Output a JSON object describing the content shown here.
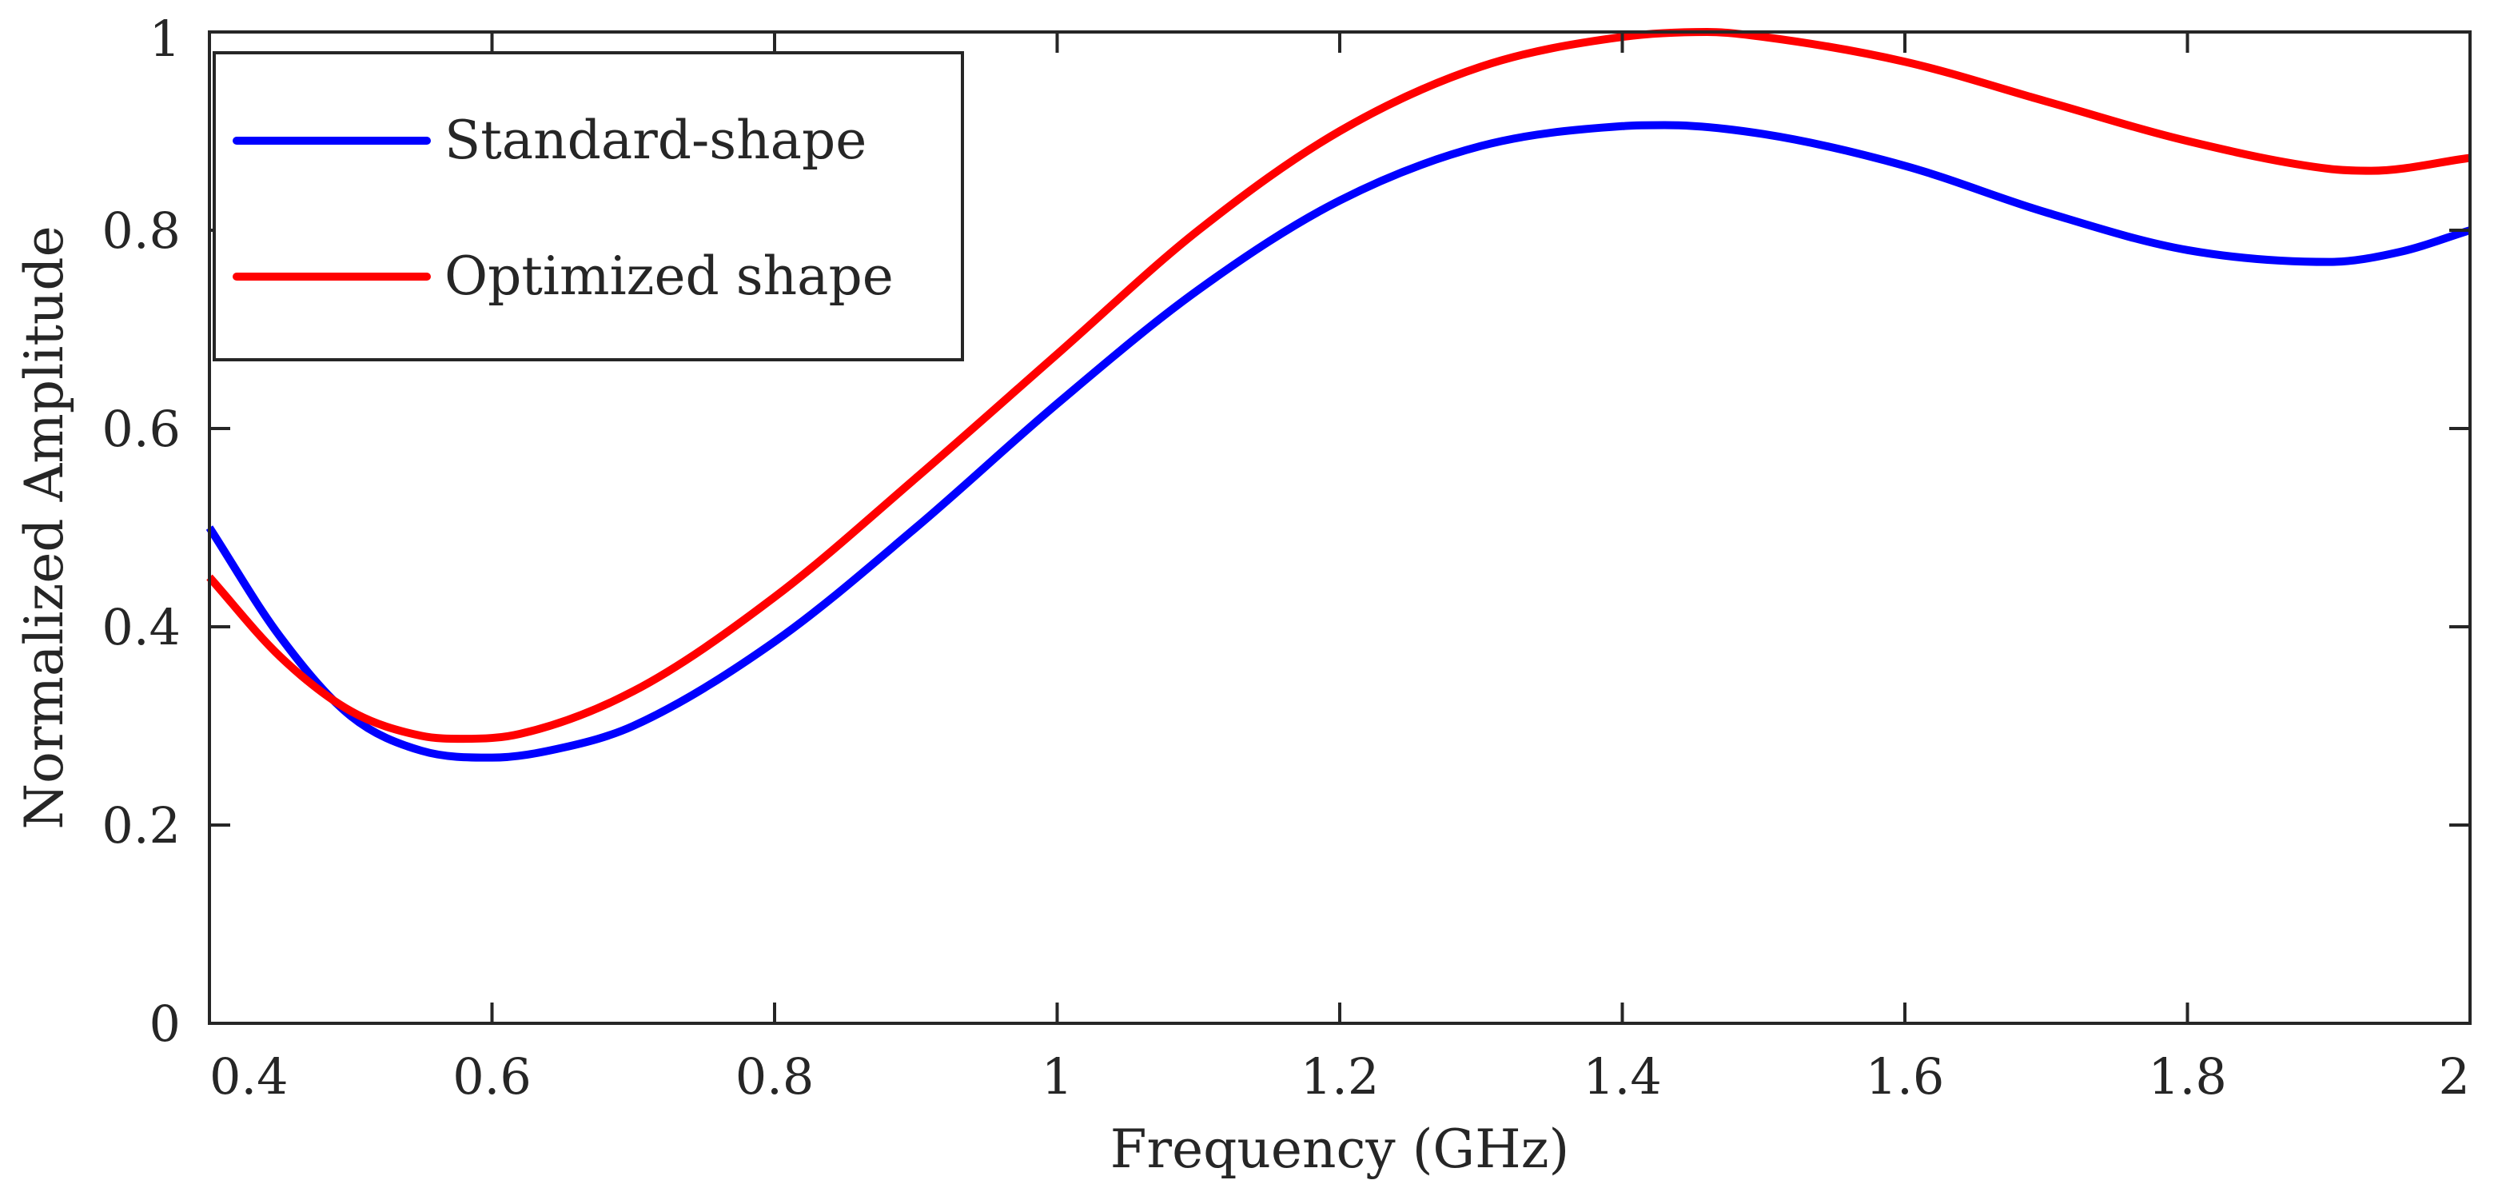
{
  "chart_data": {
    "type": "line",
    "title": "",
    "xlabel": "Frequency (GHz)",
    "ylabel": "Normalized Amplitude",
    "xlim": [
      0.4,
      2
    ],
    "ylim": [
      0,
      1
    ],
    "xticks": [
      0.4,
      0.6,
      0.8,
      1,
      1.2,
      1.4,
      1.6,
      1.8,
      2
    ],
    "xtick_labels": [
      "0.4",
      "0.6",
      "0.8",
      "1",
      "1.2",
      "1.4",
      "1.6",
      "1.8",
      "2"
    ],
    "yticks": [
      0,
      0.2,
      0.4,
      0.6,
      0.8,
      1
    ],
    "ytick_labels": [
      "0",
      "0.2",
      "0.4",
      "0.6",
      "0.8",
      "1"
    ],
    "grid": false,
    "legend_location": "top-left",
    "series": [
      {
        "name": "Standard-shape",
        "color": "#0000ff",
        "x": [
          0.4,
          0.45,
          0.5,
          0.55,
          0.6,
          0.65,
          0.7,
          0.8,
          0.9,
          1.0,
          1.1,
          1.2,
          1.3,
          1.4,
          1.43,
          1.5,
          1.6,
          1.7,
          1.8,
          1.9,
          1.95,
          2.0
        ],
        "y": [
          0.5,
          0.39,
          0.31,
          0.275,
          0.268,
          0.278,
          0.3,
          0.385,
          0.5,
          0.625,
          0.74,
          0.83,
          0.885,
          0.905,
          0.906,
          0.897,
          0.865,
          0.818,
          0.78,
          0.768,
          0.778,
          0.8
        ]
      },
      {
        "name": "Optimized shape",
        "color": "#ff0000",
        "x": [
          0.4,
          0.45,
          0.5,
          0.55,
          0.58,
          0.62,
          0.7,
          0.8,
          0.9,
          1.0,
          1.1,
          1.2,
          1.3,
          1.4,
          1.46,
          1.5,
          1.6,
          1.7,
          1.8,
          1.9,
          1.93,
          2.0
        ],
        "y": [
          0.45,
          0.37,
          0.315,
          0.29,
          0.287,
          0.292,
          0.335,
          0.43,
          0.55,
          0.675,
          0.8,
          0.9,
          0.965,
          0.995,
          1.0,
          0.995,
          0.97,
          0.93,
          0.89,
          0.862,
          0.86,
          0.873
        ]
      }
    ]
  }
}
